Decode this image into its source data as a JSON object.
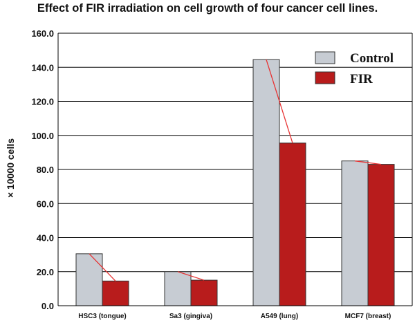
{
  "chart_data": {
    "type": "bar",
    "title": "Effect of FIR irradiation on cell growth of four cancer cell lines.",
    "ylabel": "× 10000 cells",
    "xlabel": "",
    "ylim": [
      0,
      160
    ],
    "yticks": [
      "0.0",
      "20.0",
      "40.0",
      "60.0",
      "80.0",
      "100.0",
      "120.0",
      "140.0",
      "160.0"
    ],
    "categories": [
      "HSC3 (tongue)",
      "Sa3 (gingiva)",
      "A549 (lung)",
      "MCF7 (breast)"
    ],
    "series": [
      {
        "name": "Control",
        "color": "#c7ccd3",
        "values": [
          30.5,
          20.0,
          144.5,
          85.0
        ]
      },
      {
        "name": "FIR",
        "color": "#b81c1c",
        "values": [
          14.5,
          15.0,
          95.5,
          83.0
        ]
      }
    ],
    "trend_line_color": "#e83232",
    "grid": true,
    "legend_position": "top-right"
  }
}
